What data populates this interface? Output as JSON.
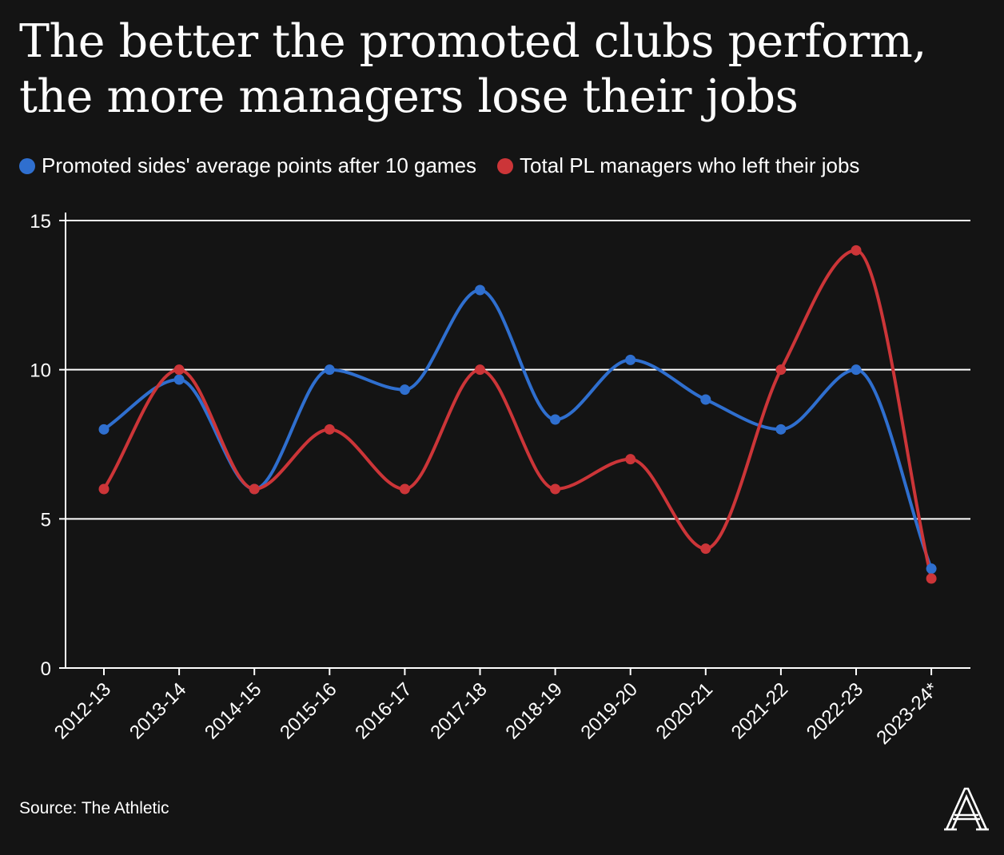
{
  "title": "The better the promoted clubs perform, the more managers lose their jobs",
  "source": "Source: The Athletic",
  "chart_data": {
    "type": "line",
    "categories": [
      "2012-13",
      "2013-14",
      "2014-15",
      "2015-16",
      "2016-17",
      "2017-18",
      "2018-19",
      "2019-20",
      "2020-21",
      "2021-22",
      "2022-23",
      "2023-24*"
    ],
    "series": [
      {
        "name": "Promoted sides' average points after 10 games",
        "color": "#2f6fcf",
        "values": [
          8,
          9.67,
          6,
          10,
          9.33,
          12.67,
          8.33,
          10.33,
          9,
          8,
          10,
          3.33
        ]
      },
      {
        "name": "Total PL managers who left their jobs",
        "color": "#cc3538",
        "values": [
          6,
          10,
          6,
          8,
          6,
          10,
          6,
          7,
          4,
          10,
          14,
          3
        ]
      }
    ],
    "ylim": [
      0,
      15
    ],
    "yticks": [
      0,
      5,
      10,
      15
    ],
    "grid": true,
    "legend": "top-left",
    "xlabel": "",
    "ylabel": ""
  }
}
